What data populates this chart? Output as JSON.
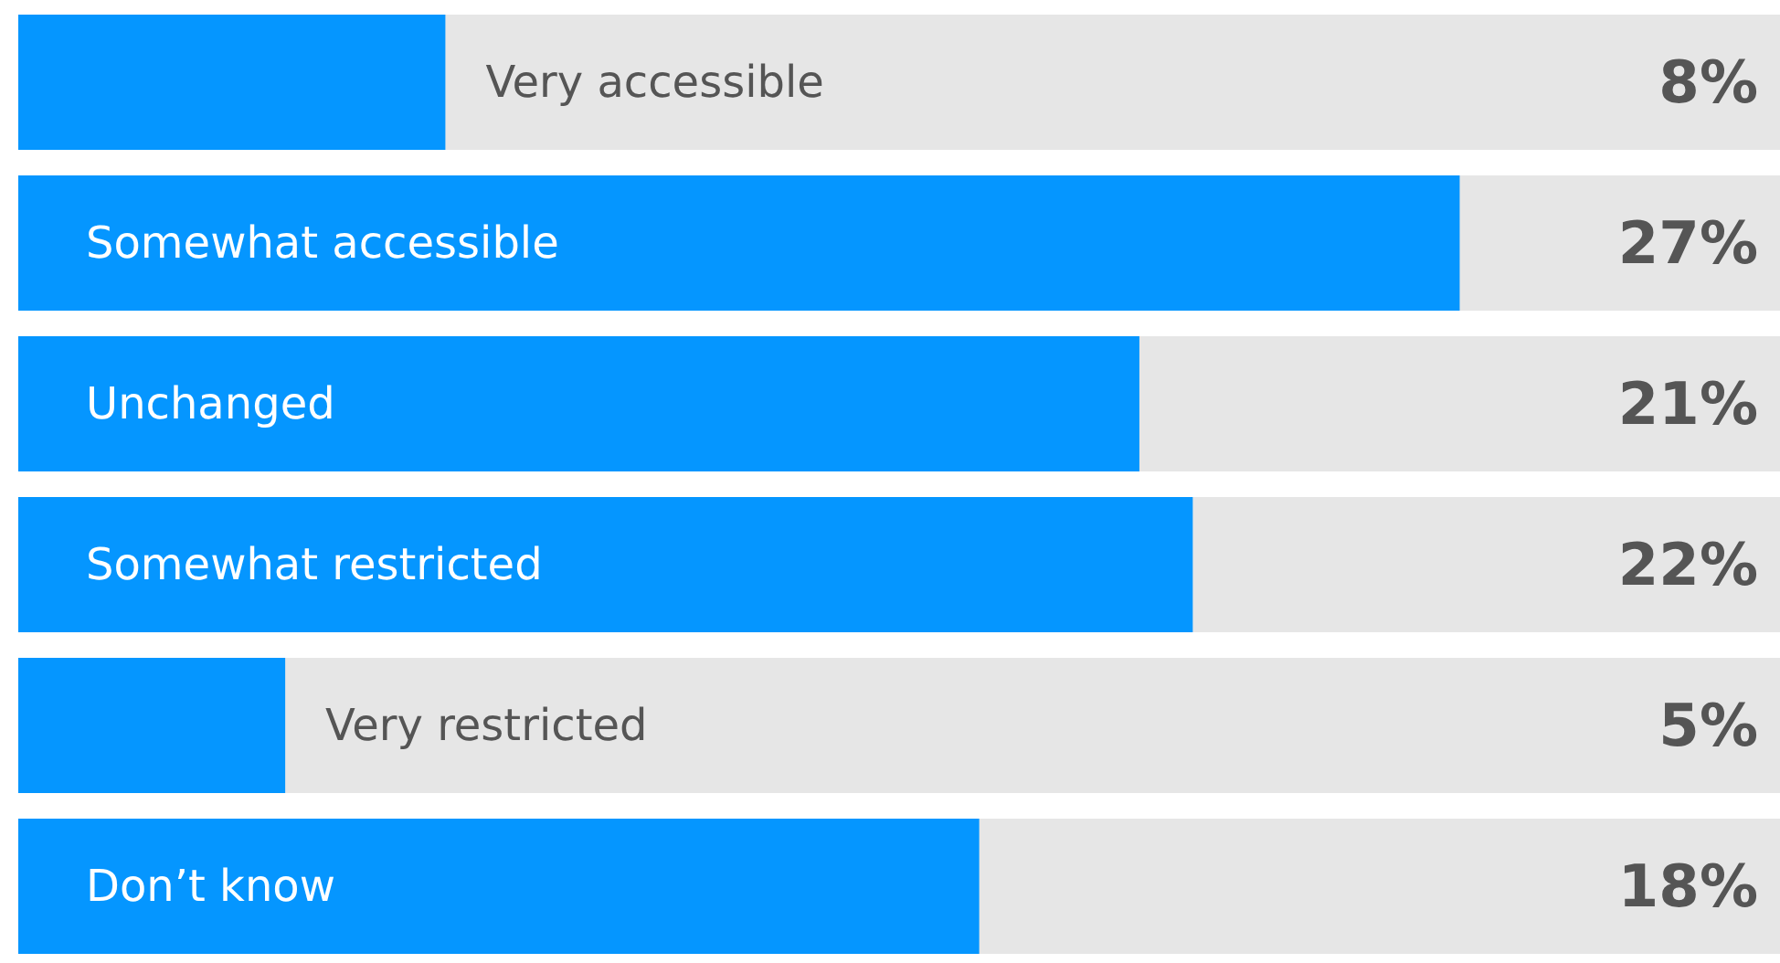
{
  "chart_data": {
    "type": "bar",
    "orientation": "horizontal",
    "categories": [
      "Very accessible",
      "Somewhat accessible",
      "Unchanged",
      "Somewhat restricted",
      "Very restricted",
      "Don’t know"
    ],
    "values": [
      8,
      27,
      21,
      22,
      5,
      18
    ],
    "value_labels": [
      "8%",
      "27%",
      "21%",
      "22%",
      "5%",
      "18%"
    ],
    "color": "#0596ff",
    "xlim": [
      0,
      33
    ]
  }
}
